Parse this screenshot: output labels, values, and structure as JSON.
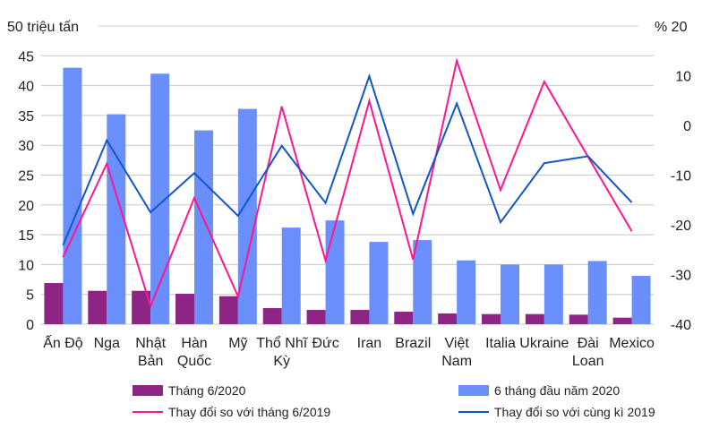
{
  "chart_data": {
    "type": "bar",
    "title": "",
    "xlabel": "",
    "ylabel": "triệu tấn",
    "y2label": "%",
    "ylim": [
      0,
      50
    ],
    "y2lim": [
      -40,
      20
    ],
    "grid": true,
    "legend_position": "bottom",
    "left_axis_unit_label": "50 triệu tấn",
    "right_axis_unit_label": "% 20",
    "yticks": [
      "0",
      "5",
      "10",
      "15",
      "20",
      "25",
      "30",
      "35",
      "40",
      "45"
    ],
    "yticks_values": [
      0,
      5,
      10,
      15,
      20,
      25,
      30,
      35,
      40,
      45
    ],
    "y2ticks": [
      "-40",
      "-30",
      "-20",
      "-10",
      "0",
      "10"
    ],
    "y2ticks_values": [
      -40,
      -30,
      -20,
      -10,
      0,
      10
    ],
    "categories": [
      [
        "Ấn Độ"
      ],
      [
        "Nga"
      ],
      [
        "Nhật",
        "Bản"
      ],
      [
        "Hàn",
        "Quốc"
      ],
      [
        "Mỹ"
      ],
      [
        "Thổ Nhĩ",
        "Kỳ"
      ],
      [
        "Đức"
      ],
      [
        "Iran"
      ],
      [
        "Brazil"
      ],
      [
        "Việt",
        "Nam"
      ],
      [
        "Italia"
      ],
      [
        "Ukraine"
      ],
      [
        "Đài",
        "Loan"
      ],
      [
        "Mexico"
      ]
    ],
    "series": [
      {
        "name": "Tháng 6/2020",
        "kind": "bar",
        "axis": "left",
        "color": "#8e2585",
        "values": [
          6.9,
          5.6,
          5.6,
          5.1,
          4.7,
          2.7,
          2.4,
          2.4,
          2.1,
          1.8,
          1.7,
          1.7,
          1.6,
          1.1
        ]
      },
      {
        "name": "6 tháng đầu năm 2020",
        "kind": "bar",
        "axis": "left",
        "color": "#6b8ffa",
        "values": [
          43.0,
          35.2,
          42.0,
          32.5,
          36.1,
          16.2,
          17.4,
          13.8,
          14.1,
          10.7,
          10.0,
          10.0,
          10.6,
          8.1
        ]
      },
      {
        "name": "Thay đổi so với tháng 6/2019",
        "kind": "line",
        "axis": "right",
        "color": "#ff1493",
        "values": [
          -26.5,
          -7.7,
          -36.4,
          -14.6,
          -34.4,
          3.8,
          -27.2,
          4.9,
          -27.0,
          13.0,
          -13.0,
          8.8,
          -6.3,
          -21.3
        ]
      },
      {
        "name": "Thay đổi so với cùng kì 2019",
        "kind": "line",
        "axis": "right",
        "color": "#1155cc",
        "values": [
          -24.1,
          -3.0,
          -17.5,
          -9.6,
          -18.2,
          -4.1,
          -15.6,
          9.9,
          -17.8,
          4.4,
          -19.5,
          -7.6,
          -6.2,
          -15.5
        ]
      }
    ]
  },
  "colors": {
    "grid": "#c8c8c8",
    "text": "#222222"
  }
}
